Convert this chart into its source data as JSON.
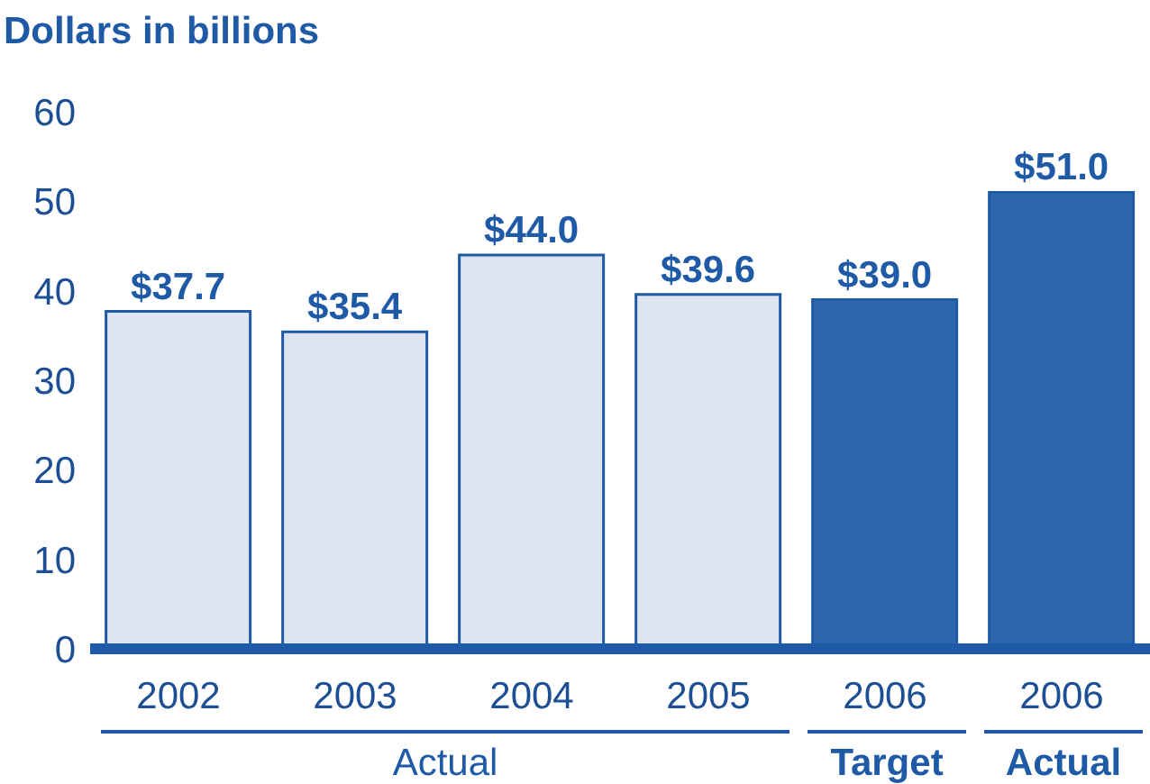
{
  "chart_data": {
    "type": "bar",
    "ylabel": "Dollars in billions",
    "categories": [
      "2002",
      "2003",
      "2004",
      "2005",
      "2006",
      "2006"
    ],
    "values": [
      37.7,
      35.4,
      44.0,
      39.6,
      39.0,
      51.0
    ],
    "colors": [
      "#dde3ef",
      "#dde3ef",
      "#dde3ef",
      "#dde3ef",
      "#2e66ad",
      "#2e66ad"
    ],
    "value_labels": [
      "$37.7",
      "$35.4",
      "$44.0",
      "$39.6",
      "$39.0",
      "$51.0"
    ],
    "ylim": [
      0,
      60
    ],
    "yticks": [
      0,
      10,
      20,
      30,
      40,
      50,
      60
    ],
    "grid": false,
    "annotations": [
      "Actual",
      "Target",
      "Actual"
    ]
  }
}
